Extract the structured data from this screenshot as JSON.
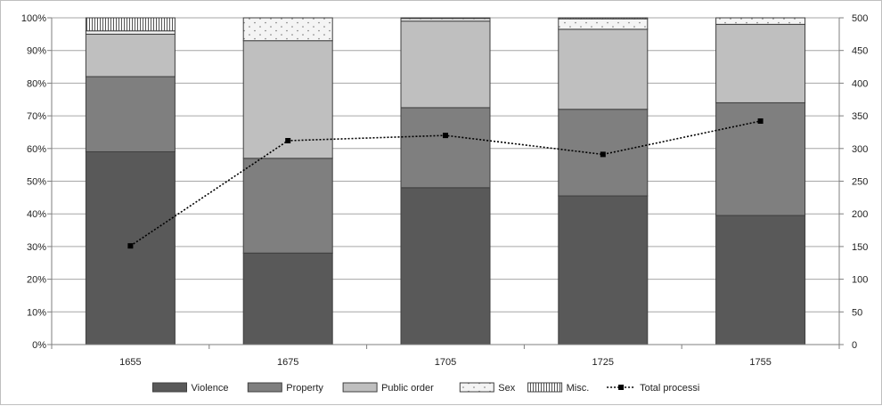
{
  "chart_data": {
    "type": "bar",
    "stacked": true,
    "categories": [
      "1655",
      "1675",
      "1705",
      "1725",
      "1755"
    ],
    "series": [
      {
        "name": "Violence",
        "values": [
          59,
          28,
          48,
          45.5,
          39.5
        ],
        "color": "#595959",
        "pattern": "solid"
      },
      {
        "name": "Property",
        "values": [
          23,
          29,
          24.5,
          26.5,
          34.5
        ],
        "color": "#7f7f7f",
        "pattern": "solid"
      },
      {
        "name": "Public order",
        "values": [
          13,
          36,
          26.5,
          24.5,
          24
        ],
        "color": "#bfbfbf",
        "pattern": "solid"
      },
      {
        "name": "Sex",
        "values": [
          1,
          7,
          0.8,
          3.2,
          2
        ],
        "color": "#f2f2f2",
        "pattern": "dots"
      },
      {
        "name": "Misc.",
        "values": [
          4,
          0,
          0.2,
          0.3,
          0
        ],
        "color": "#ffffff",
        "pattern": "vertical-lines"
      }
    ],
    "line_series": {
      "name": "Total processi",
      "values": [
        151,
        312,
        320,
        291,
        342
      ],
      "axis": "right",
      "color": "#000000",
      "style": "dotted",
      "marker": "square"
    },
    "left_axis": {
      "ylim": [
        0,
        100
      ],
      "ticks": [
        "0%",
        "10%",
        "20%",
        "30%",
        "40%",
        "50%",
        "60%",
        "70%",
        "80%",
        "90%",
        "100%"
      ]
    },
    "right_axis": {
      "ylim": [
        0,
        500
      ],
      "ticks": [
        "0",
        "50",
        "100",
        "150",
        "200",
        "250",
        "300",
        "350",
        "400",
        "450",
        "500"
      ]
    },
    "grid": true,
    "legend_position": "bottom",
    "title": "",
    "xlabel": "",
    "ylabel": ""
  }
}
